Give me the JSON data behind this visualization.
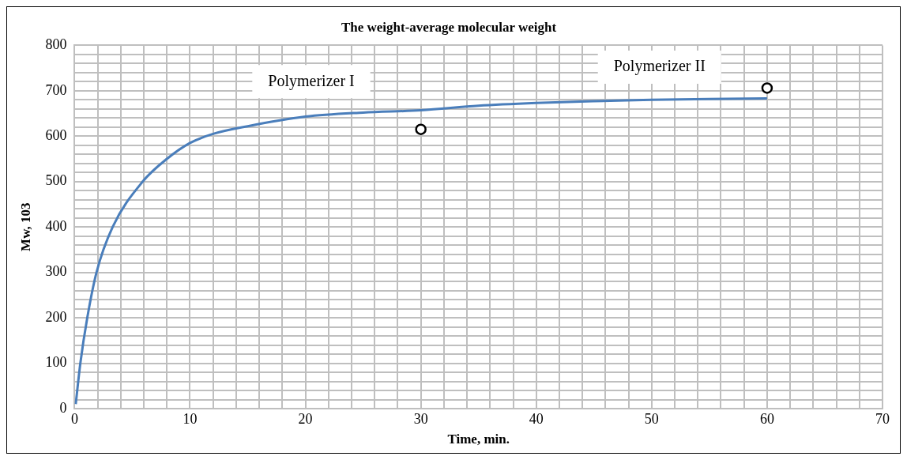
{
  "chart_data": {
    "type": "line",
    "title": "The weight-average molecular weight",
    "xlabel": "Time, min.",
    "ylabel": "Mw, 103",
    "annotations": [
      "Polymerizer I",
      "Polymerizer II"
    ],
    "series": [
      {
        "color": "#4a7ebb",
        "x": [
          0.1,
          0.5,
          1.1,
          1.9,
          3.3,
          5.9,
          8,
          10,
          12,
          15,
          20,
          25,
          30,
          35,
          40,
          45,
          50,
          55,
          60
        ],
        "values": [
          10,
          100,
          200,
          300,
          400,
          500,
          550,
          585,
          605,
          622,
          643,
          652,
          657,
          667,
          673,
          677,
          680,
          682,
          683
        ]
      },
      {
        "type": "scatter",
        "color": "#000000",
        "marker": "circle",
        "x": [
          30,
          60
        ],
        "values": [
          615,
          706
        ]
      }
    ],
    "xlim": [
      0,
      70
    ],
    "ylim": [
      0,
      800
    ],
    "xticks": [
      0,
      {
        "value": 2,
        "label": null
      },
      {
        "value": 4,
        "label": null
      },
      {
        "value": 6,
        "label": null
      },
      {
        "value": 8,
        "label": null
      },
      10,
      {
        "value": 12,
        "label": null
      },
      {
        "value": 14,
        "label": null
      },
      {
        "value": 16,
        "label": null
      },
      {
        "value": 18,
        "label": null
      },
      20,
      {
        "value": 22,
        "label": null
      },
      {
        "value": 24,
        "label": null
      },
      {
        "value": 26,
        "label": null
      },
      {
        "value": 28,
        "label": null
      },
      30,
      {
        "value": 32,
        "label": null
      },
      {
        "value": 34,
        "label": null
      },
      {
        "value": 36,
        "label": null
      },
      {
        "value": 38,
        "label": null
      },
      40,
      {
        "value": 42,
        "label": null
      },
      {
        "value": 44,
        "label": null
      },
      {
        "value": 46,
        "label": null
      },
      {
        "value": 48,
        "label": null
      },
      50,
      {
        "value": 52,
        "label": null
      },
      {
        "value": 54,
        "label": null
      },
      {
        "value": 56,
        "label": null
      },
      {
        "value": 58,
        "label": null
      },
      60,
      {
        "value": 62,
        "label": null
      },
      {
        "value": 64,
        "label": null
      },
      {
        "value": 66,
        "label": null
      },
      {
        "value": 68,
        "label": null
      },
      70
    ],
    "yticks": [
      0,
      {
        "value": 20,
        "label": null
      },
      {
        "value": 40,
        "label": null
      },
      {
        "value": 60,
        "label": null
      },
      {
        "value": 80,
        "label": null
      },
      100,
      {
        "value": 120,
        "label": null
      },
      {
        "value": 140,
        "label": null
      },
      {
        "value": 160,
        "label": null
      },
      {
        "value": 180,
        "label": null
      },
      200,
      {
        "value": 220,
        "label": null
      },
      {
        "value": 240,
        "label": null
      },
      {
        "value": 260,
        "label": null
      },
      {
        "value": 280,
        "label": null
      },
      300,
      {
        "value": 320,
        "label": null
      },
      {
        "value": 340,
        "label": null
      },
      {
        "value": 360,
        "label": null
      },
      {
        "value": 380,
        "label": null
      },
      400,
      {
        "value": 420,
        "label": null
      },
      {
        "value": 440,
        "label": null
      },
      {
        "value": 460,
        "label": null
      },
      {
        "value": 480,
        "label": null
      },
      500,
      {
        "value": 520,
        "label": null
      },
      {
        "value": 540,
        "label": null
      },
      {
        "value": 560,
        "label": null
      },
      {
        "value": 580,
        "label": null
      },
      600,
      {
        "value": 620,
        "label": null
      },
      {
        "value": 640,
        "label": null
      },
      {
        "value": 660,
        "label": null
      },
      {
        "value": 680,
        "label": null
      },
      700,
      {
        "value": 720,
        "label": null
      },
      {
        "value": 740,
        "label": null
      },
      {
        "value": 760,
        "label": null
      },
      {
        "value": 780,
        "label": null
      },
      800
    ],
    "grid": true,
    "legend": false
  }
}
